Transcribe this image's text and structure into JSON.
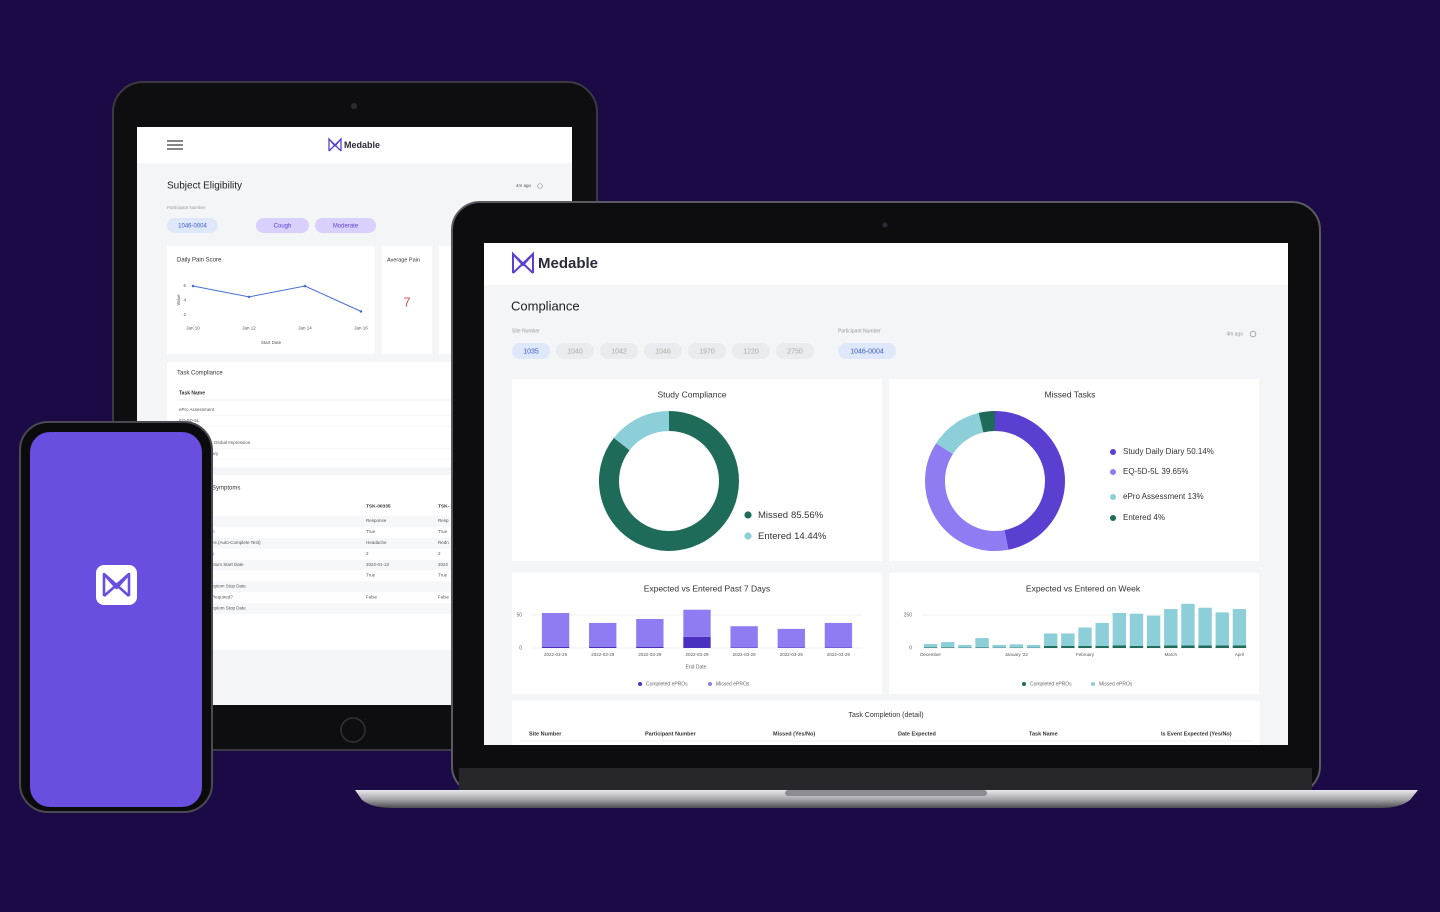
{
  "tablet": {
    "brand": "Medable",
    "title": "Subject Eligibility",
    "updated": "4m ago",
    "participant_label": "Participant Number",
    "chips": [
      "1046-0004",
      "Cough",
      "Moderate"
    ],
    "average_pain": {
      "title": "Average Pain",
      "value": "7"
    },
    "task_compliance": {
      "title": "Task Compliance",
      "header": "Task Name",
      "rows": [
        "ePro Assessment",
        "EQ-5D-5L",
        "Global Impression",
        "ary"
      ]
    },
    "symptoms": {
      "title": "Symptoms",
      "columns": [
        "TSK-00335",
        "TSK-"
      ],
      "rows": [
        [
          null,
          "Response",
          "Resp"
        ],
        [
          "n",
          "True",
          "True"
        ],
        [
          "ns (Auto-Complete Test)",
          "Headache",
          "Redn"
        ],
        [
          "y",
          "2",
          "2"
        ],
        [
          "ptom Start Date",
          "2022-01-13",
          "2022"
        ],
        [
          null,
          "True",
          "True"
        ],
        [
          "nptom Stop Date",
          null,
          null
        ],
        [
          "Required?",
          "False",
          "False"
        ],
        [
          "nptom Stop Date",
          null,
          null
        ]
      ]
    }
  },
  "laptop": {
    "brand": "Medable",
    "title": "Compliance",
    "site_label": "Site Number",
    "sites": [
      "1035",
      "1040",
      "1042",
      "1046",
      "1970",
      "1220",
      "2750"
    ],
    "participant_label": "Participant Number",
    "participant": "1046-0004",
    "updated": "4m ago",
    "table": {
      "title": "Task Completion (detail)",
      "columns": [
        "Site Number",
        "Participant Number",
        "Missed (Yes/No)",
        "Date Expected",
        "Task Name",
        "Is Event Expected (Yes/No)"
      ]
    }
  },
  "chart_data": [
    {
      "type": "line",
      "title": "Daily Pain Score",
      "y_label": "Value",
      "x_label": "Start Date",
      "categories": [
        "Jan 10",
        "Jan 12",
        "Jan 14",
        "Jan 16"
      ],
      "values": [
        6,
        4.5,
        6,
        2.5
      ],
      "ylim": [
        1,
        7
      ],
      "yticks": [
        2,
        4,
        6
      ],
      "color": "#4a6fd0"
    },
    {
      "type": "pie",
      "title": "Study Compliance",
      "categories": [
        "Missed",
        "Entered"
      ],
      "values": [
        85.56,
        14.44
      ],
      "value_labels": [
        "85.56%",
        "14.44%"
      ],
      "colors": [
        "#1e6b5a",
        "#8ccfd9"
      ]
    },
    {
      "type": "pie",
      "title": "Missed Tasks",
      "categories": [
        "Study Daily Diary",
        "EQ-5D-5L",
        "ePro Assessment",
        "Entered"
      ],
      "values": [
        50.14,
        39.65,
        13,
        4
      ],
      "value_labels": [
        "50.14%",
        "39.65%",
        "13%",
        "4%"
      ],
      "colors": [
        "#5b3fd0",
        "#8f7cf2",
        "#8ccfd9",
        "#1e6b5a"
      ]
    },
    {
      "type": "bar",
      "stacked": true,
      "title": "Expected vs Entered Past 7 Days",
      "x_label": "End Date",
      "categories": [
        "2022-03-29",
        "2022-03-29",
        "2022-03-29",
        "2022-03-29",
        "2022-03-29",
        "2022-03-29",
        "2022-03-29"
      ],
      "series": [
        {
          "name": "Completed ePROs",
          "color": "#4b2fc0",
          "values": [
            2,
            2,
            2,
            17,
            1,
            1,
            1
          ]
        },
        {
          "name": "Missed ePROs",
          "color": "#8f7cf2",
          "values": [
            51,
            36,
            42,
            41,
            32,
            28,
            37
          ]
        }
      ],
      "ylim": [
        0,
        60
      ],
      "yticks": [
        0,
        50
      ]
    },
    {
      "type": "bar",
      "stacked": true,
      "title": "Expected vs Entered on Week",
      "categories": [
        "December",
        null,
        null,
        null,
        null,
        "January '22",
        null,
        null,
        null,
        "February",
        null,
        null,
        null,
        null,
        "March",
        null,
        null,
        null,
        "April"
      ],
      "series": [
        {
          "name": "Completed ePROs",
          "color": "#1e6b5a",
          "values": [
            5,
            5,
            3,
            5,
            3,
            3,
            3,
            15,
            15,
            15,
            15,
            20,
            15,
            15,
            20,
            20,
            20,
            20,
            20
          ]
        },
        {
          "name": "Missed ePROs",
          "color": "#8ccfd9",
          "values": [
            25,
            40,
            20,
            70,
            20,
            25,
            20,
            95,
            95,
            140,
            175,
            245,
            245,
            230,
            275,
            315,
            285,
            250,
            275
          ]
        }
      ],
      "ylim": [
        0,
        350
      ],
      "yticks": [
        0,
        250
      ]
    }
  ]
}
